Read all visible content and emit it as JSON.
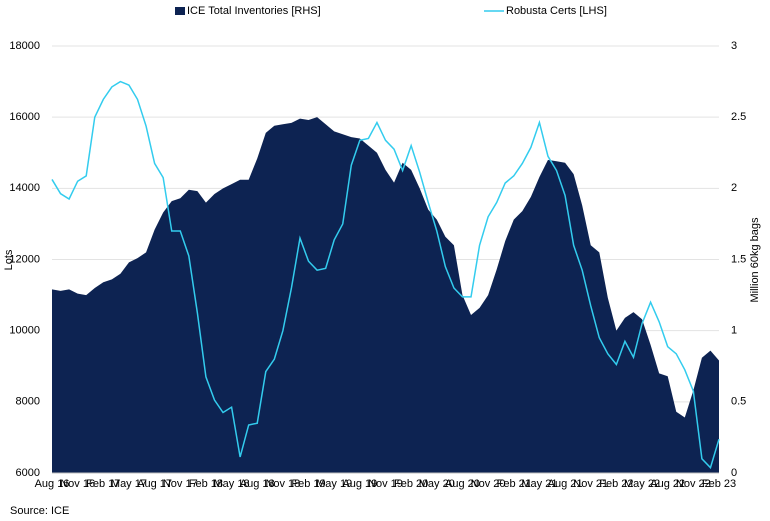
{
  "chart_data": {
    "type": "line_area",
    "source": "Source: ICE",
    "ylabel": "Lots",
    "y2label": "Million 60kg bags",
    "ylim": [
      6000,
      18000
    ],
    "yticks": [
      6000,
      8000,
      10000,
      12000,
      14000,
      16000,
      18000
    ],
    "y2lim": [
      0,
      3
    ],
    "y2ticks": [
      0,
      0.5,
      1,
      1.5,
      2,
      2.5,
      3
    ],
    "grid": true,
    "legend": "top",
    "categories": [
      "Aug 16",
      null,
      null,
      "Nov 16",
      null,
      null,
      "Feb 17",
      null,
      null,
      "May 17",
      null,
      null,
      "Aug 17",
      null,
      null,
      "Nov 17",
      null,
      null,
      "Feb 18",
      null,
      null,
      "May 18",
      null,
      null,
      "Aug 18",
      null,
      null,
      "Nov 18",
      null,
      null,
      "Feb 19",
      null,
      null,
      "May 19",
      null,
      null,
      "Aug 19",
      null,
      null,
      "Nov 19",
      null,
      null,
      "Feb 20",
      null,
      null,
      "May 20",
      null,
      null,
      "Aug 20",
      null,
      null,
      "Nov 20",
      null,
      null,
      "Feb 21",
      null,
      null,
      "May 21",
      null,
      null,
      "Aug 21",
      null,
      null,
      "Nov 21",
      null,
      null,
      "Feb 22",
      null,
      null,
      "May 22",
      null,
      null,
      "Aug 22",
      null,
      null,
      "Nov 22",
      null,
      null,
      "Feb 23"
    ],
    "series": [
      {
        "name": "ICE Total Inventories [RHS]",
        "color": "#0d2352",
        "kind": "area",
        "axis": "y2",
        "values": [
          1.29,
          1.28,
          1.29,
          1.26,
          1.25,
          1.3,
          1.34,
          1.36,
          1.4,
          1.48,
          1.51,
          1.55,
          1.71,
          1.83,
          1.91,
          1.93,
          1.99,
          1.98,
          1.9,
          1.96,
          2.0,
          2.03,
          2.06,
          2.06,
          2.21,
          2.39,
          2.44,
          2.45,
          2.46,
          2.49,
          2.48,
          2.5,
          2.45,
          2.4,
          2.38,
          2.36,
          2.35,
          2.3,
          2.25,
          2.13,
          2.04,
          2.18,
          2.13,
          2.0,
          1.85,
          1.78,
          1.66,
          1.6,
          1.25,
          1.11,
          1.16,
          1.25,
          1.43,
          1.63,
          1.78,
          1.84,
          1.94,
          2.08,
          2.2,
          2.19,
          2.18,
          2.1,
          1.88,
          1.6,
          1.55,
          1.23,
          1.0,
          1.09,
          1.13,
          1.08,
          0.9,
          0.7,
          0.68,
          0.43,
          0.39,
          0.58,
          0.81,
          0.86,
          0.79
        ]
      },
      {
        "name": "Robusta Certs [LHS]",
        "color": "#33ccee",
        "kind": "line",
        "axis": "y",
        "values": [
          14250,
          13850,
          13700,
          14200,
          14350,
          16000,
          16500,
          16850,
          17000,
          16900,
          16500,
          15750,
          14700,
          14300,
          12800,
          12800,
          12100,
          10500,
          8700,
          8050,
          7700,
          7850,
          6450,
          7350,
          7400,
          8850,
          9200,
          10000,
          11200,
          12600,
          11950,
          11700,
          11750,
          12550,
          13000,
          14650,
          15350,
          15400,
          15850,
          15350,
          15100,
          14500,
          15200,
          14450,
          13600,
          12800,
          11800,
          11200,
          10950,
          10950,
          12400,
          13200,
          13600,
          14150,
          14350,
          14700,
          15150,
          15850,
          14900,
          14500,
          13800,
          12400,
          11700,
          10700,
          9800,
          9350,
          9050,
          9700,
          9250,
          10200,
          10800,
          10250,
          9550,
          9350,
          8900,
          8300,
          6400,
          6150,
          6950
        ]
      }
    ]
  }
}
